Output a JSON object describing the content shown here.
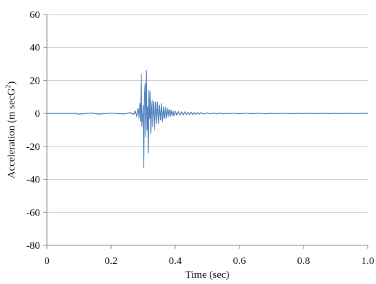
{
  "chart_data": {
    "type": "line",
    "title": "",
    "xlabel": "Time (sec)",
    "ylabel": {
      "prefix": "Acceleration (m secG",
      "sup": "2",
      "suffix": ")"
    },
    "xlim": [
      0,
      1.0
    ],
    "ylim": [
      -80,
      60
    ],
    "x_ticks": [
      0,
      0.2,
      0.4,
      0.6,
      0.8,
      1.0
    ],
    "x_tick_labels": [
      "0",
      "0.2",
      "0.4",
      "0.6",
      "0.8",
      "1.0"
    ],
    "y_ticks": [
      -80,
      -60,
      -40,
      -20,
      0,
      20,
      40,
      60
    ],
    "y_tick_labels": [
      "-80",
      "-60",
      "-40",
      "-20",
      "0",
      "20",
      "40",
      "60"
    ],
    "grid": "horizontal",
    "legend": "none",
    "series": [
      {
        "color": "#4f81bd",
        "x": [
          0,
          0.09,
          0.1,
          0.14,
          0.16,
          0.2,
          0.24,
          0.26,
          0.27,
          0.275,
          0.28,
          0.284,
          0.287,
          0.29,
          0.292,
          0.294,
          0.296,
          0.298,
          0.3,
          0.302,
          0.304,
          0.306,
          0.308,
          0.31,
          0.312,
          0.314,
          0.316,
          0.318,
          0.32,
          0.322,
          0.324,
          0.326,
          0.328,
          0.33,
          0.333,
          0.336,
          0.339,
          0.342,
          0.345,
          0.348,
          0.351,
          0.354,
          0.357,
          0.36,
          0.363,
          0.366,
          0.369,
          0.372,
          0.375,
          0.378,
          0.381,
          0.384,
          0.387,
          0.39,
          0.393,
          0.396,
          0.4,
          0.405,
          0.41,
          0.415,
          0.42,
          0.425,
          0.43,
          0.435,
          0.44,
          0.445,
          0.45,
          0.455,
          0.46,
          0.465,
          0.47,
          0.475,
          0.48,
          0.49,
          0.5,
          0.51,
          0.52,
          0.53,
          0.54,
          0.55,
          0.56,
          0.57,
          0.58,
          0.6,
          0.62,
          0.64,
          0.66,
          0.68,
          0.7,
          0.72,
          0.74,
          0.76,
          0.78,
          0.8,
          0.82,
          0.84,
          0.86,
          0.88,
          0.9,
          0.92,
          0.94,
          0.96,
          0.98,
          1.0
        ],
        "y": [
          0,
          0,
          -0.5,
          0.3,
          -0.4,
          0.2,
          -0.3,
          0.5,
          -0.5,
          1.5,
          -2,
          3,
          -3,
          6,
          -5,
          24,
          -8,
          -2,
          5,
          -33,
          10,
          18,
          -14,
          26,
          -10,
          4,
          -24,
          14,
          -3,
          13,
          -12,
          4,
          8,
          -8,
          7,
          -10,
          7,
          -6,
          7,
          -6,
          5,
          -4,
          6,
          -5,
          4,
          -3,
          4,
          -3,
          3,
          -2,
          2.5,
          -2,
          2,
          -1.5,
          1.5,
          -1.5,
          1.5,
          -1.2,
          1.2,
          -1,
          1,
          -1,
          1,
          -0.8,
          0.8,
          -0.7,
          0.7,
          -0.8,
          0.6,
          -0.6,
          0.5,
          -0.5,
          0.5,
          -0.4,
          0.4,
          -0.3,
          0.3,
          -0.3,
          0.3,
          -0.3,
          0.2,
          -0.2,
          0.2,
          -0.2,
          0.2,
          -0.2,
          0.2,
          -0.2,
          0.1,
          -0.1,
          0.2,
          -0.2,
          0.1,
          -0.1,
          0.1,
          -0.1,
          0.1,
          -0.1,
          0.1,
          -0.1,
          0.1,
          -0.1,
          0.1,
          0
        ]
      }
    ]
  }
}
